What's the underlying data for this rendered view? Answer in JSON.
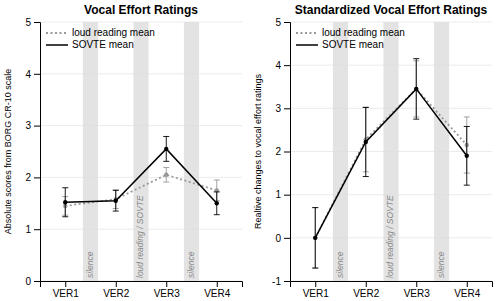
{
  "chart_data": [
    {
      "type": "line",
      "title": "Vocal Effort Ratings",
      "y_label": "Absolute scores from BORG CR-10 scale",
      "categories": [
        "VER1",
        "VER2",
        "VER3",
        "VER4"
      ],
      "series": [
        {
          "name": "loud reading mean",
          "color": "#999999",
          "line_style": "dotted",
          "marker": "circle",
          "values": [
            1.45,
            1.58,
            2.05,
            1.75
          ],
          "errors": [
            0.18,
            0.18,
            0.14,
            0.2
          ]
        },
        {
          "name": "SOVTE mean",
          "color": "#000000",
          "line_style": "solid",
          "marker": "circle",
          "values": [
            1.52,
            1.55,
            2.55,
            1.5
          ],
          "errors": [
            0.28,
            0.2,
            0.24,
            0.22
          ]
        }
      ],
      "annotations": [
        "silence",
        "loud reading / SOVTE",
        "silence"
      ],
      "ylim": [
        0,
        5
      ],
      "yticks": [
        0,
        1,
        2,
        3,
        4,
        5
      ],
      "grid": true,
      "legend": "upper left"
    },
    {
      "type": "line",
      "title": "Standardized Vocal Effort Ratings",
      "y_label": "Realtive changes to vocal effort ratings",
      "categories": [
        "VER1",
        "VER2",
        "VER3",
        "VER4"
      ],
      "series": [
        {
          "name": "loud reading mean",
          "color": "#999999",
          "line_style": "dotted",
          "marker": "circle",
          "values": [
            0.0,
            2.28,
            3.45,
            2.15
          ],
          "errors": [
            0.7,
            0.75,
            0.65,
            0.65
          ]
        },
        {
          "name": "SOVTE mean",
          "color": "#000000",
          "line_style": "solid",
          "marker": "circle",
          "values": [
            0.0,
            2.22,
            3.45,
            1.9
          ],
          "errors": [
            0.7,
            0.8,
            0.7,
            0.68
          ]
        }
      ],
      "annotations": [
        "silence",
        "loud reading / SOVTE",
        "silence"
      ],
      "ylim": [
        -1,
        5
      ],
      "yticks": [
        -1,
        0,
        1,
        2,
        3,
        4,
        5
      ],
      "grid": true,
      "legend": "upper left"
    }
  ]
}
